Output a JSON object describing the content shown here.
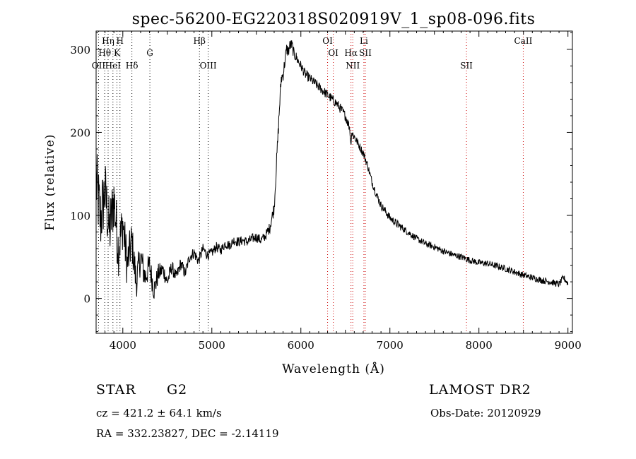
{
  "chart_data": {
    "type": "line",
    "title": "spec-56200-EG220318S020919V_1_sp08-096.fits",
    "xlabel": "Wavelength (Å)",
    "ylabel": "Flux (relative)",
    "xlim": [
      3700,
      9050
    ],
    "ylim": [
      -42,
      322
    ],
    "x_ticks": [
      4000,
      5000,
      6000,
      7000,
      8000,
      9000
    ],
    "y_ticks": [
      0,
      100,
      200,
      300
    ],
    "grid": false,
    "series": [
      {
        "x": [
          3700,
          3750,
          3800,
          3850,
          3900,
          3950,
          4000,
          4050,
          4100,
          4150,
          4200,
          4250,
          4300,
          4350,
          4400,
          4450,
          4500,
          4550,
          4600,
          4650,
          4700,
          4750,
          4800,
          4850,
          4900,
          4950,
          5000,
          5050,
          5100,
          5150,
          5200,
          5250,
          5300,
          5350,
          5400,
          5450,
          5500,
          5550,
          5600,
          5650,
          5700,
          5720,
          5740,
          5760,
          5780,
          5800,
          5820,
          5840,
          5860,
          5880,
          5900,
          5920,
          5950,
          6000,
          6050,
          6100,
          6150,
          6200,
          6250,
          6300,
          6350,
          6400,
          6450,
          6500,
          6550,
          6560,
          6570,
          6600,
          6650,
          6700,
          6750,
          6800,
          6850,
          6900,
          6950,
          7000,
          7100,
          7200,
          7300,
          7400,
          7500,
          7600,
          7700,
          7800,
          7900,
          8000,
          8100,
          8200,
          8300,
          8400,
          8500,
          8600,
          8700,
          8800,
          8900,
          8950,
          9000
        ],
        "values": [
          140,
          95,
          130,
          80,
          120,
          60,
          90,
          40,
          70,
          20,
          50,
          25,
          40,
          10,
          30,
          35,
          20,
          38,
          25,
          42,
          30,
          50,
          55,
          45,
          60,
          52,
          55,
          62,
          58,
          66,
          64,
          70,
          68,
          70,
          68,
          72,
          74,
          70,
          75,
          85,
          110,
          150,
          190,
          230,
          265,
          270,
          285,
          300,
          298,
          305,
          305,
          295,
          290,
          280,
          270,
          265,
          260,
          255,
          250,
          245,
          240,
          235,
          228,
          220,
          205,
          185,
          200,
          195,
          185,
          175,
          160,
          140,
          125,
          112,
          105,
          97,
          88,
          80,
          72,
          66,
          62,
          57,
          53,
          50,
          46,
          43,
          42,
          39,
          36,
          32,
          28,
          25,
          22,
          20,
          17,
          25,
          18
        ],
        "noise_amplitude": [
          45,
          45,
          40,
          40,
          38,
          35,
          30,
          28,
          25,
          22,
          20,
          18,
          16,
          14,
          12,
          10,
          10,
          9,
          8,
          8,
          8,
          7,
          7,
          7,
          6,
          6,
          6,
          6,
          6,
          6,
          6,
          6,
          6,
          6,
          6,
          6,
          6,
          6,
          6,
          7,
          8,
          9,
          9,
          9,
          9,
          8,
          8,
          8,
          8,
          8,
          7,
          7,
          7,
          6,
          6,
          6,
          6,
          6,
          6,
          6,
          6,
          6,
          6,
          6,
          6,
          6,
          6,
          6,
          5,
          5,
          5,
          5,
          5,
          5,
          5,
          5,
          5,
          4,
          4,
          4,
          4,
          4,
          4,
          4,
          4,
          4,
          4,
          4,
          4,
          4,
          4,
          4,
          4,
          4,
          4,
          4,
          4
        ]
      }
    ],
    "spectral_lines": [
      {
        "label": "Hη",
        "wavelength": 3835,
        "row": 0,
        "color": "#000000"
      },
      {
        "label": "H",
        "wavelength": 3968,
        "row": 0,
        "color": "#000000"
      },
      {
        "label": "Hθ",
        "wavelength": 3797,
        "row": 1,
        "color": "#000000"
      },
      {
        "label": "K",
        "wavelength": 3934,
        "row": 1,
        "color": "#000000"
      },
      {
        "label": "G",
        "wavelength": 4304,
        "row": 1,
        "color": "#000000"
      },
      {
        "label": "OII",
        "wavelength": 3727,
        "row": 2,
        "color": "#000000"
      },
      {
        "label": "HeI",
        "wavelength": 3889,
        "row": 2,
        "color": "#000000"
      },
      {
        "label": "Hδ",
        "wavelength": 4102,
        "row": 2,
        "color": "#000000"
      },
      {
        "label": "Hβ",
        "wavelength": 4861,
        "row": 0,
        "color": "#000000"
      },
      {
        "label": "OIII",
        "wavelength": 4959,
        "row": 2,
        "color": "#000000"
      },
      {
        "label": "OI",
        "wavelength": 6300,
        "row": 0,
        "color": "#cc0000"
      },
      {
        "label": "OI",
        "wavelength": 6364,
        "row": 1,
        "color": "#cc0000"
      },
      {
        "label": "Hα",
        "wavelength": 6563,
        "row": 1,
        "color": "#cc0000"
      },
      {
        "label": "NII",
        "wavelength": 6583,
        "row": 2,
        "color": "#cc0000"
      },
      {
        "label": "Li",
        "wavelength": 6708,
        "row": 0,
        "color": "#cc0000"
      },
      {
        "label": "SII",
        "wavelength": 6724,
        "row": 1,
        "color": "#cc0000"
      },
      {
        "label": "SII",
        "wavelength": 7860,
        "row": 2,
        "color": "#cc0000"
      },
      {
        "label": "CaII",
        "wavelength": 8498,
        "row": 0,
        "color": "#cc0000"
      }
    ]
  },
  "info": {
    "object_class": "STAR",
    "subclass": "G2",
    "survey": "LAMOST DR2",
    "cz": "cz = 421.2 ± 64.1 km/s",
    "obs_date": "Obs-Date: 20120929",
    "coords": "RA = 332.23827, DEC =  -2.14119"
  }
}
